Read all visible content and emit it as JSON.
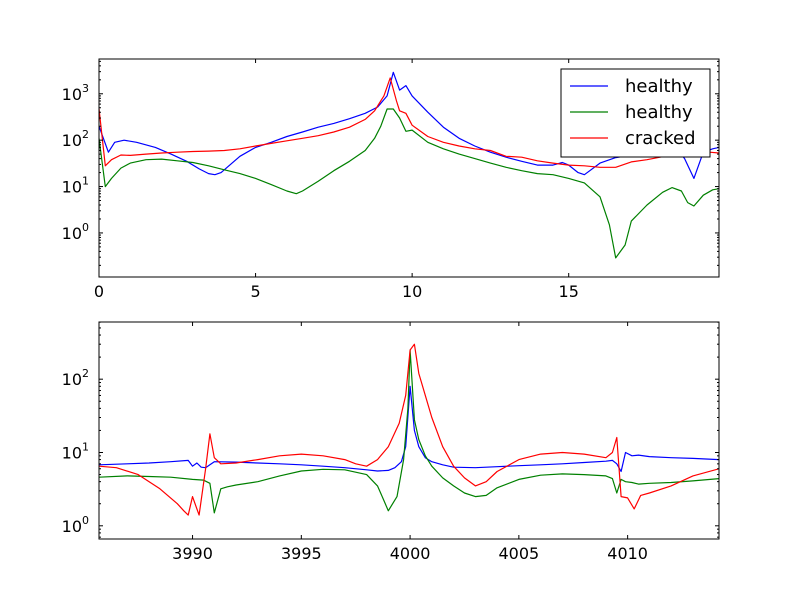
{
  "chart_data": [
    {
      "type": "line",
      "yscale": "log",
      "xlim": [
        0,
        19.8
      ],
      "ylim_log10": [
        -0.95,
        3.75
      ],
      "xticks": [
        0,
        5,
        10,
        15
      ],
      "xtick_labels": [
        "0",
        "5",
        "10",
        "15"
      ],
      "yticks_log10": [
        0,
        1,
        2,
        3
      ],
      "ytick_labels": [
        "10",
        "10",
        "10",
        "10"
      ],
      "ytick_exponents": [
        "0",
        "1",
        "2",
        "3"
      ],
      "grid": false,
      "legend_position": "top-right",
      "series": [
        {
          "name": "healthy",
          "color": "#0000ff",
          "x": [
            0,
            0.3,
            0.5,
            0.8,
            1.2,
            1.8,
            2.3,
            2.8,
            3.2,
            3.5,
            3.7,
            3.9,
            4.2,
            4.5,
            5,
            5.5,
            6,
            6.5,
            7,
            7.5,
            8,
            8.5,
            8.9,
            9.2,
            9.4,
            9.6,
            9.8,
            10,
            10.5,
            11,
            11.5,
            12,
            12.5,
            13,
            13.5,
            14,
            14.5,
            14.8,
            15,
            15.3,
            15.5,
            16,
            16.5,
            17,
            17.5,
            18,
            18.3,
            18.5,
            18.7,
            19,
            19.3,
            19.6,
            19.8
          ],
          "y": [
            200,
            55,
            90,
            100,
            90,
            70,
            50,
            35,
            24,
            19,
            18,
            20,
            30,
            45,
            70,
            90,
            120,
            150,
            190,
            230,
            290,
            380,
            520,
            900,
            2900,
            1200,
            1500,
            900,
            400,
            190,
            110,
            75,
            55,
            43,
            35,
            29,
            29,
            33,
            29,
            20,
            18,
            32,
            42,
            48,
            55,
            72,
            80,
            60,
            40,
            15,
            55,
            65,
            70
          ]
        },
        {
          "name": "healthy",
          "color": "#008000",
          "x": [
            0,
            0.2,
            0.4,
            0.7,
            1,
            1.5,
            2,
            2.5,
            3,
            3.5,
            4,
            4.5,
            5,
            5.5,
            6,
            6.3,
            6.5,
            7,
            7.5,
            8,
            8.5,
            8.8,
            9,
            9.2,
            9.4,
            9.6,
            9.8,
            10,
            10.5,
            11,
            11.5,
            12,
            12.5,
            13,
            13.5,
            14,
            14.5,
            15,
            15.5,
            16,
            16.3,
            16.5,
            16.8,
            17,
            17.5,
            18,
            18.3,
            18.6,
            18.8,
            19,
            19.3,
            19.6,
            19.8
          ],
          "y": [
            110,
            10,
            15,
            25,
            32,
            38,
            39,
            36,
            33,
            28,
            23,
            19,
            15,
            11,
            8,
            7,
            8,
            13,
            22,
            35,
            60,
            110,
            200,
            470,
            470,
            300,
            155,
            165,
            90,
            65,
            50,
            40,
            32,
            26,
            22,
            19,
            18,
            15,
            12,
            6,
            1.5,
            0.29,
            0.55,
            1.8,
            4,
            7.5,
            9.5,
            8,
            4.5,
            3.8,
            6.5,
            8.5,
            9
          ]
        },
        {
          "name": "cracked",
          "color": "#ff0000",
          "x": [
            0,
            0.2,
            0.4,
            0.7,
            1,
            1.5,
            2,
            2.5,
            3,
            3.5,
            4,
            4.5,
            5,
            5.5,
            6,
            6.5,
            7,
            7.5,
            8,
            8.5,
            8.8,
            9.1,
            9.3,
            9.5,
            9.6,
            9.8,
            10,
            10.5,
            11,
            11.5,
            12,
            12.5,
            13,
            13.5,
            14,
            14.5,
            15,
            15.5,
            16,
            16.5,
            17,
            17.5,
            18,
            18.5,
            18.8,
            19,
            19.3,
            19.5,
            19.8
          ],
          "y": [
            480,
            28,
            38,
            48,
            47,
            50,
            53,
            55,
            57,
            58,
            60,
            65,
            75,
            85,
            97,
            110,
            125,
            150,
            190,
            280,
            430,
            900,
            2200,
            700,
            430,
            380,
            210,
            120,
            90,
            75,
            65,
            60,
            45,
            43,
            36,
            32,
            29,
            28,
            26,
            26,
            34,
            38,
            44,
            52,
            57,
            60,
            57,
            55,
            53
          ]
        }
      ]
    },
    {
      "type": "line",
      "yscale": "log",
      "xlim": [
        3985.7,
        4014.2
      ],
      "ylim_log10": [
        -0.18,
        2.78
      ],
      "xticks": [
        3990,
        3995,
        4000,
        4005,
        4010
      ],
      "xtick_labels": [
        "3990",
        "3995",
        "4000",
        "4005",
        "4010"
      ],
      "yticks_log10": [
        0,
        1,
        2
      ],
      "ytick_labels": [
        "10",
        "10",
        "10"
      ],
      "ytick_exponents": [
        "0",
        "1",
        "2"
      ],
      "grid": false,
      "legend_position": "none",
      "series": [
        {
          "name": "",
          "color": "#0000ff",
          "x": [
            3985.7,
            3987,
            3988,
            3989,
            3989.8,
            3990,
            3990.2,
            3990.4,
            3990.6,
            3990.8,
            3991,
            3992,
            3993,
            3994,
            3995,
            3996,
            3997,
            3998,
            3998.5,
            3999,
            3999.3,
            3999.6,
            3999.8,
            4000,
            4000.2,
            4000.4,
            4000.7,
            4001,
            4001.5,
            4002,
            4003,
            4004,
            4005,
            4006,
            4007,
            4008,
            4009,
            4009.3,
            4009.5,
            4009.7,
            4009.9,
            4010.2,
            4010.5,
            4011,
            4012,
            4013,
            4014.2
          ],
          "y": [
            6.8,
            7,
            7.2,
            7.5,
            7.8,
            6.5,
            7.2,
            6.3,
            6.2,
            6.8,
            7.5,
            7.4,
            7.2,
            7,
            6.8,
            6.5,
            6.2,
            5.8,
            5.6,
            5.7,
            6.2,
            7.5,
            12,
            80,
            20,
            12,
            8.5,
            7.5,
            6.8,
            6.3,
            6.2,
            6.4,
            6.6,
            6.8,
            7,
            7.3,
            7.6,
            7.8,
            7,
            5.5,
            10,
            9,
            9.2,
            8.8,
            8.5,
            8.3,
            8
          ]
        },
        {
          "name": "",
          "color": "#008000",
          "x": [
            3985.7,
            3987,
            3988,
            3989,
            3990,
            3990.5,
            3990.8,
            3991,
            3991.3,
            3991.6,
            3992,
            3993,
            3994,
            3995,
            3996,
            3997,
            3998,
            3998.5,
            3998.8,
            3999,
            3999.4,
            3999.7,
            3999.9,
            4000,
            4000.2,
            4000.4,
            4000.7,
            4001,
            4001.5,
            4002,
            4002.5,
            4003,
            4003.5,
            4004,
            4005,
            4006,
            4007,
            4008,
            4009,
            4009.3,
            4009.5,
            4009.7,
            4009.9,
            4010.2,
            4010.5,
            4011,
            4012,
            4013,
            4014.2
          ],
          "y": [
            4.6,
            4.8,
            4.7,
            4.6,
            4.3,
            4.2,
            3.8,
            1.5,
            3.2,
            3.4,
            3.6,
            4,
            4.8,
            5.6,
            5.9,
            5.8,
            5,
            3.5,
            2.2,
            1.6,
            2.5,
            8,
            40,
            250,
            28,
            15,
            9,
            6.5,
            4.5,
            3.5,
            2.8,
            2.5,
            2.6,
            3.3,
            4.3,
            4.9,
            5.1,
            5,
            4.8,
            4.4,
            2.8,
            4.3,
            4,
            3.9,
            3.7,
            3.8,
            3.9,
            4.1,
            4.4
          ]
        },
        {
          "name": "",
          "color": "#ff0000",
          "x": [
            3985.7,
            3986.5,
            3987.5,
            3988.5,
            3989.3,
            3989.6,
            3989.8,
            3990,
            3990.3,
            3990.6,
            3990.8,
            3991,
            3991.3,
            3992,
            3993,
            3994,
            3995,
            3996,
            3997,
            3997.5,
            3998,
            3998.5,
            3999,
            3999.5,
            3999.8,
            4000,
            4000.2,
            4000.4,
            4000.7,
            4001,
            4001.5,
            4002,
            4002.5,
            4003,
            4003.5,
            4004,
            4005,
            4006,
            4007,
            4008,
            4009,
            4009.3,
            4009.5,
            4009.7,
            4010,
            4010.3,
            4010.6,
            4011,
            4012,
            4013,
            4014.2
          ],
          "y": [
            6.5,
            6.2,
            5,
            3.2,
            2,
            1.6,
            1.4,
            2.5,
            1.4,
            6,
            18,
            8.5,
            7,
            7.2,
            8,
            9,
            9.5,
            9,
            8,
            7,
            6.5,
            8,
            12,
            25,
            60,
            250,
            300,
            120,
            60,
            30,
            12,
            6.5,
            4.5,
            3.5,
            4,
            5.5,
            8,
            9.5,
            10,
            9.5,
            8.5,
            10,
            16,
            2.5,
            2.4,
            1.7,
            2.6,
            2.8,
            3.5,
            4.8,
            6
          ]
        }
      ]
    }
  ]
}
